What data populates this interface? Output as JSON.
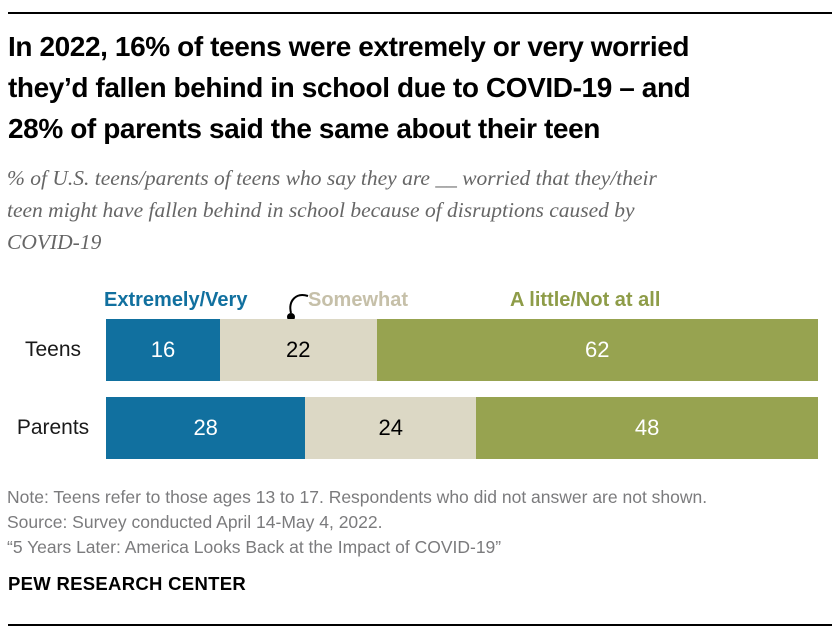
{
  "header": {
    "title_lines": [
      "In 2022, 16% of teens were extremely or very worried",
      "they’d fallen behind in school due to COVID-19 – and",
      "28% of parents said the same about their teen"
    ],
    "subtitle_lines": [
      "% of U.S. teens/parents of teens who say they are __ worried that they/their",
      "teen might have fallen behind in school because of disruptions caused by",
      "COVID-19"
    ]
  },
  "chart_data": {
    "type": "bar",
    "orientation": "horizontal_stacked",
    "title": "In 2022, 16% of teens were extremely or very worried they’d fallen behind in school due to COVID-19 – and 28% of parents said the same about their teen",
    "subtitle": "% of U.S. teens/parents of teens who say they are __ worried that they/their teen might have fallen behind in school because of disruptions caused by COVID-19",
    "categories": [
      "Teens",
      "Parents"
    ],
    "series": [
      {
        "name": "Extremely/Very",
        "color": "#11709f",
        "label_color": "#11709f",
        "value_color": "#ffffff",
        "values": [
          16,
          28
        ]
      },
      {
        "name": "Somewhat",
        "color": "#dcd8c5",
        "label_color": "#c6c0a9",
        "value_color": "#000000",
        "values": [
          22,
          24
        ]
      },
      {
        "name": "A little/Not at all",
        "color": "#97a350",
        "label_color": "#8e9c48",
        "value_color": "#ffffff",
        "values": [
          62,
          48
        ]
      }
    ],
    "xlim": [
      0,
      100
    ],
    "grid": false,
    "legend_position": "top",
    "value_labels": "inside-center",
    "annotation": "curved arrow with dot pointing from Somewhat legend label to the Somewhat segment of the Teens bar"
  },
  "footer": {
    "note": "Note: Teens refer to those ages 13 to 17. Respondents who did not answer are not shown.",
    "source": "Source: Survey conducted April 14-May 4, 2022.",
    "quote": "“5 Years Later: America Looks Back at the Impact of COVID-19”",
    "brand": "PEW RESEARCH CENTER"
  }
}
